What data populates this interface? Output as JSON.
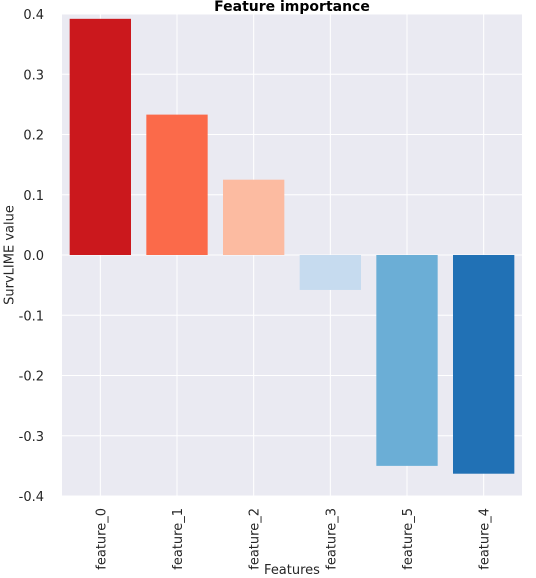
{
  "chart_data": {
    "type": "bar",
    "title": "Feature importance",
    "xlabel": "Features",
    "ylabel": "SurvLIME value",
    "categories": [
      "feature_0",
      "feature_1",
      "feature_2",
      "feature_3",
      "feature_5",
      "feature_4"
    ],
    "values": [
      0.392,
      0.233,
      0.125,
      -0.058,
      -0.35,
      -0.363
    ],
    "bar_colors": [
      "#cb181d",
      "#fb6a4a",
      "#fcbba1",
      "#c6dbef",
      "#6baed6",
      "#2171b5"
    ],
    "ylim": [
      -0.4,
      0.4
    ],
    "yticks": [
      -0.4,
      -0.3,
      -0.2,
      -0.1,
      0.0,
      0.1,
      0.2,
      0.3,
      0.4
    ],
    "ytick_labels": [
      "-0.4",
      "-0.3",
      "-0.2",
      "-0.1",
      "0.0",
      "0.1",
      "0.2",
      "0.3",
      "0.4"
    ],
    "grid": true,
    "background_color": "#eaeaf2",
    "grid_color": "#ffffff"
  }
}
